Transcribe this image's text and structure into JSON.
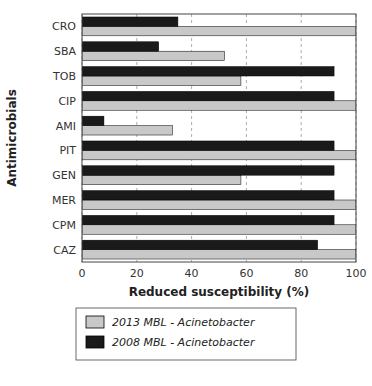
{
  "chart_data": {
    "type": "bar",
    "orientation": "horizontal",
    "categories": [
      "CRO",
      "SBA",
      "TOB",
      "CIP",
      "AMI",
      "PIT",
      "GEN",
      "MER",
      "CPM",
      "CAZ"
    ],
    "series": [
      {
        "name": "2013 MBL - Acinetobacter",
        "color": "#c8c8c8",
        "values": [
          100,
          52,
          58,
          100,
          33,
          100,
          58,
          100,
          100,
          100
        ]
      },
      {
        "name": "2008 MBL - Acinetobacter",
        "color": "#1a1a1a",
        "values": [
          35,
          28,
          92,
          92,
          8,
          92,
          92,
          92,
          92,
          86
        ]
      }
    ],
    "xlabel": "Reduced susceptibility (%)",
    "ylabel": "Antimicrobials",
    "xlim": [
      0,
      100
    ],
    "xticks": [
      0,
      20,
      40,
      60,
      80,
      100
    ],
    "grid": true,
    "legend": "bottom"
  }
}
